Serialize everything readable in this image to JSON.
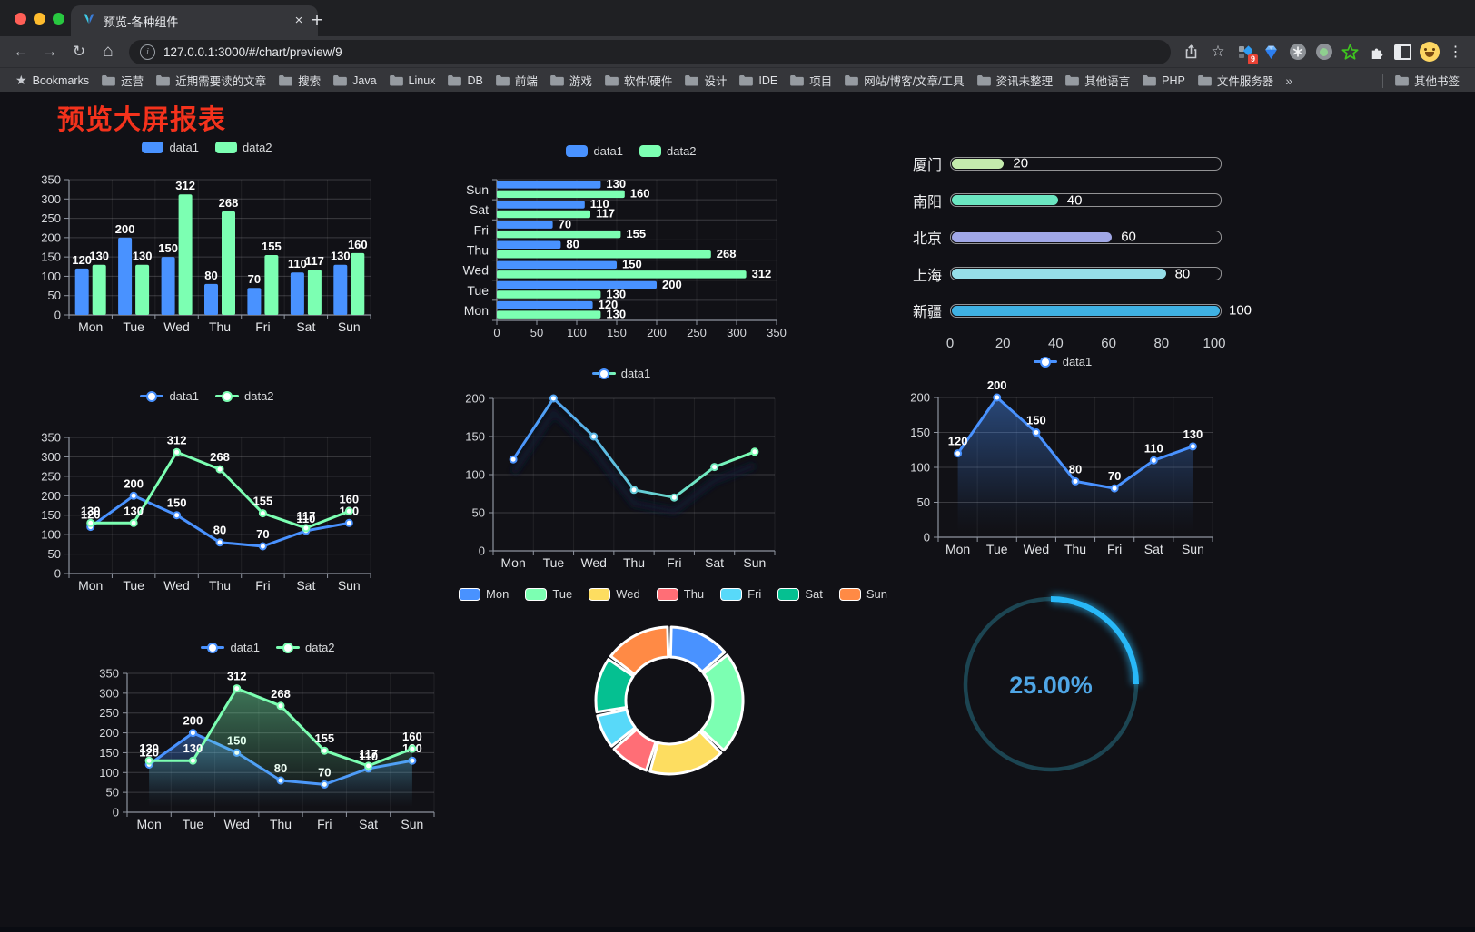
{
  "browser": {
    "tab_title": "预览-各种组件",
    "url": "127.0.0.1:3000/#/chart/preview/9",
    "new_tab": "+",
    "tab_close": "×",
    "extension_badge": "9",
    "menu_dots": "⋮",
    "bookmarks_bar": {
      "bookmarks_label": "Bookmarks",
      "folders": [
        "运营",
        "近期需要读的文章",
        "搜索",
        "Java",
        "Linux",
        "DB",
        "前端",
        "游戏",
        "软件/硬件",
        "设计",
        "IDE",
        "项目",
        "网站/博客/文章/工具",
        "资讯未整理",
        "其他语言",
        "PHP",
        "文件服务器"
      ],
      "overflow": "»",
      "other_bookmarks": "其他书签"
    }
  },
  "page": {
    "title": "预览大屏报表",
    "title_color": "#f4321c",
    "background": "#111116"
  },
  "chart_data": [
    {
      "id": "grouped-bar",
      "type": "bar",
      "legend_position": "top",
      "grid": true,
      "categories": [
        "Mon",
        "Tue",
        "Wed",
        "Thu",
        "Fri",
        "Sat",
        "Sun"
      ],
      "series": [
        {
          "name": "data1",
          "color": "#4992ff",
          "values": [
            120,
            200,
            150,
            80,
            70,
            110,
            130
          ]
        },
        {
          "name": "data2",
          "color": "#7cffb2",
          "values": [
            130,
            130,
            312,
            268,
            155,
            117,
            160
          ]
        }
      ],
      "ylim": [
        0,
        350
      ],
      "yticks": [
        0,
        50,
        100,
        150,
        200,
        250,
        300,
        350
      ],
      "value_labels": true
    },
    {
      "id": "horizontal-bar",
      "type": "bar",
      "orientation": "horizontal",
      "legend_position": "top",
      "categories": [
        "Mon",
        "Tue",
        "Wed",
        "Thu",
        "Fri",
        "Sat",
        "Sun"
      ],
      "display_order_top_to_bottom": [
        "Sun",
        "Sat",
        "Fri",
        "Thu",
        "Wed",
        "Tue",
        "Mon"
      ],
      "series": [
        {
          "name": "data1",
          "color": "#4992ff",
          "values": [
            120,
            200,
            150,
            80,
            70,
            110,
            130
          ]
        },
        {
          "name": "data2",
          "color": "#7cffb2",
          "values": [
            130,
            130,
            312,
            268,
            155,
            117,
            160
          ]
        }
      ],
      "xlim": [
        0,
        350
      ],
      "xticks": [
        0,
        50,
        100,
        150,
        200,
        250,
        300,
        350
      ],
      "value_labels": true
    },
    {
      "id": "progress-bars",
      "type": "bar",
      "orientation": "horizontal-progress",
      "max": 100,
      "rows": [
        {
          "label": "厦门",
          "value": 20,
          "color": "#c4ebad"
        },
        {
          "label": "南阳",
          "value": 40,
          "color": "#6be6c1"
        },
        {
          "label": "北京",
          "value": 60,
          "color": "#a0a7e6"
        },
        {
          "label": "上海",
          "value": 80,
          "color": "#96dee8"
        },
        {
          "label": "新疆",
          "value": 100,
          "color": "#3fb1e3"
        }
      ],
      "xticks": [
        0,
        20,
        40,
        60,
        80,
        100
      ]
    },
    {
      "id": "line-two-series",
      "type": "line",
      "legend_position": "top",
      "categories": [
        "Mon",
        "Tue",
        "Wed",
        "Thu",
        "Fri",
        "Sat",
        "Sun"
      ],
      "series": [
        {
          "name": "data1",
          "color": "#4992ff",
          "values": [
            120,
            200,
            150,
            80,
            70,
            110,
            130
          ]
        },
        {
          "name": "data2",
          "color": "#7cffb2",
          "values": [
            130,
            130,
            312,
            268,
            155,
            117,
            160
          ]
        }
      ],
      "ylim": [
        0,
        350
      ],
      "yticks": [
        0,
        50,
        100,
        150,
        200,
        250,
        300,
        350
      ],
      "value_labels": true
    },
    {
      "id": "gradient-line",
      "type": "line",
      "legend_position": "top",
      "shadow": true,
      "categories": [
        "Mon",
        "Tue",
        "Wed",
        "Thu",
        "Fri",
        "Sat",
        "Sun"
      ],
      "series": [
        {
          "name": "data1",
          "gradient": [
            "#4992ff",
            "#7cffb2"
          ],
          "values": [
            120,
            200,
            150,
            80,
            70,
            110,
            130
          ]
        }
      ],
      "ylim": [
        0,
        200
      ],
      "yticks": [
        0,
        50,
        100,
        150,
        200
      ],
      "value_labels": false
    },
    {
      "id": "area-single",
      "type": "area",
      "legend_position": "top",
      "categories": [
        "Mon",
        "Tue",
        "Wed",
        "Thu",
        "Fri",
        "Sat",
        "Sun"
      ],
      "series": [
        {
          "name": "data1",
          "color": "#4992ff",
          "area": true,
          "values": [
            120,
            200,
            150,
            80,
            70,
            110,
            130
          ]
        }
      ],
      "ylim": [
        0,
        200
      ],
      "yticks": [
        0,
        50,
        100,
        150,
        200
      ],
      "value_labels": true
    },
    {
      "id": "area-two-series",
      "type": "area",
      "legend_position": "top",
      "categories": [
        "Mon",
        "Tue",
        "Wed",
        "Thu",
        "Fri",
        "Sat",
        "Sun"
      ],
      "series": [
        {
          "name": "data1",
          "color": "#4992ff",
          "area": true,
          "values": [
            120,
            200,
            150,
            80,
            70,
            110,
            130
          ]
        },
        {
          "name": "data2",
          "color": "#7cffb2",
          "area": true,
          "values": [
            130,
            130,
            312,
            268,
            155,
            117,
            160
          ]
        }
      ],
      "ylim": [
        0,
        350
      ],
      "yticks": [
        0,
        50,
        100,
        150,
        200,
        250,
        300,
        350
      ],
      "value_labels": true
    },
    {
      "id": "donut",
      "type": "pie",
      "legend_position": "top",
      "categories": [
        "Mon",
        "Tue",
        "Wed",
        "Thu",
        "Fri",
        "Sat",
        "Sun"
      ],
      "values": [
        120,
        200,
        150,
        80,
        70,
        110,
        130
      ],
      "colors": [
        "#4992ff",
        "#7cffb2",
        "#fddd60",
        "#ff6e76",
        "#58d9f9",
        "#05c091",
        "#ff8a45"
      ],
      "border_color": "#ffffff"
    },
    {
      "id": "gauge",
      "type": "gauge",
      "value": 25,
      "max": 100,
      "label": "25.00%",
      "color": "#28b8f8",
      "track_color": "#1c4552",
      "text_color": "#4fa6e6"
    }
  ]
}
